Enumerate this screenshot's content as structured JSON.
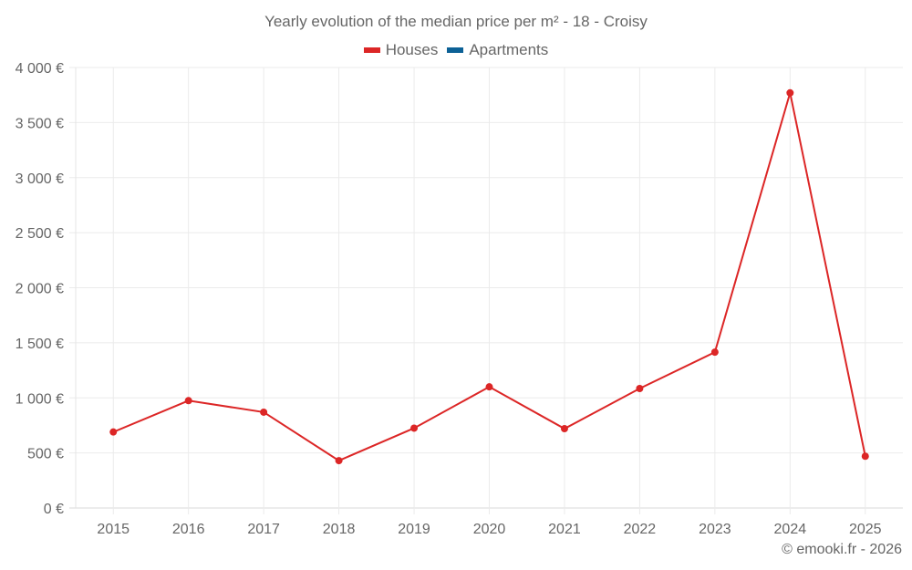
{
  "chart_data": {
    "type": "line",
    "title": "Yearly evolution of the median price per m² - 18 - Croisy",
    "xlabel": "",
    "ylabel": "",
    "categories": [
      "2015",
      "2016",
      "2017",
      "2018",
      "2019",
      "2020",
      "2021",
      "2022",
      "2023",
      "2024",
      "2025"
    ],
    "series": [
      {
        "name": "Houses",
        "color": "#dc2626",
        "values": [
          690,
          975,
          870,
          430,
          725,
          1100,
          720,
          1085,
          1415,
          3770,
          470
        ]
      },
      {
        "name": "Apartments",
        "color": "#0c6196",
        "values": []
      }
    ],
    "ylim": [
      0,
      4000
    ],
    "yticks": [
      0,
      500,
      1000,
      1500,
      2000,
      2500,
      3000,
      3500,
      4000
    ],
    "ytick_labels": [
      "0 €",
      "500 €",
      "1 000 €",
      "1 500 €",
      "2 000 €",
      "2 500 €",
      "3 000 €",
      "3 500 €",
      "4 000 €"
    ],
    "grid": true,
    "legend_position": "top"
  },
  "header": {
    "title": "Yearly evolution of the median price per m² - 18 - Croisy"
  },
  "legend": {
    "items": [
      {
        "label": "Houses",
        "color": "#dc2626"
      },
      {
        "label": "Apartments",
        "color": "#0c6196"
      }
    ]
  },
  "footer": {
    "credit": "© emooki.fr - 2026"
  }
}
